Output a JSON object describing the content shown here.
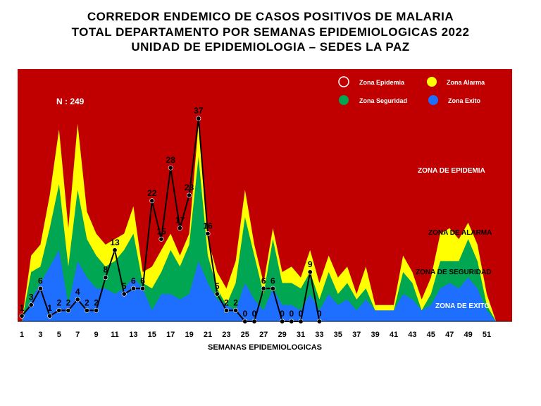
{
  "titles": {
    "line1": "CORREDOR ENDEMICO DE CASOS POSITIVOS DE MALARIA",
    "line2": "TOTAL DEPARTAMENTO POR SEMANAS EPIDEMIOLOGICAS 2022",
    "line3": "UNIDAD DE EPIDEMIOLOGIA – SEDES LA PAZ"
  },
  "annotation_n": "N : 249",
  "legend": [
    {
      "label": "Zona Epidemia",
      "color": "#c00000"
    },
    {
      "label": "Zona Alarma",
      "color": "#ffff00"
    },
    {
      "label": "Zona Seguridad",
      "color": "#00a651"
    },
    {
      "label": "Zona Exito",
      "color": "#0070ff"
    }
  ],
  "zone_labels": {
    "epidemia": "ZONA DE EPIDEMIA",
    "alarma": "ZONA DE ALARMA",
    "seguridad": "ZONA DE  SEGURIDAD",
    "exito": "ZONA DE  EXITO"
  },
  "colors": {
    "epidemia": "#c00000",
    "alarma": "#ffff00",
    "seguridad": "#00a651",
    "exito": "#1e6fff",
    "line": "#000000"
  },
  "chart_data": {
    "type": "area",
    "xlabel": "SEMANAS EPIDEMIOLOGICAS",
    "x_ticks": [
      1,
      3,
      5,
      7,
      9,
      11,
      13,
      15,
      17,
      19,
      21,
      23,
      25,
      27,
      29,
      31,
      33,
      35,
      37,
      39,
      41,
      43,
      45,
      47,
      49,
      51
    ],
    "x": [
      1,
      2,
      3,
      4,
      5,
      6,
      7,
      8,
      9,
      10,
      11,
      12,
      13,
      14,
      15,
      16,
      17,
      18,
      19,
      20,
      21,
      22,
      23,
      24,
      25,
      26,
      27,
      28,
      29,
      30,
      31,
      32,
      33,
      34,
      35,
      36,
      37,
      38,
      39,
      40,
      41,
      42,
      43,
      44,
      45,
      46,
      47,
      48,
      49,
      50,
      51,
      52
    ],
    "ylim": [
      0,
      46
    ],
    "series": [
      {
        "name": "Zona Exito",
        "values": [
          0,
          4,
          7,
          10,
          13,
          3,
          11,
          8,
          6,
          6,
          5,
          6,
          8,
          6,
          2,
          5,
          5,
          4,
          5,
          11,
          7,
          4,
          3,
          2,
          7,
          4,
          2,
          6,
          3,
          3,
          2,
          5,
          2,
          5,
          3,
          4,
          2,
          4,
          2,
          2,
          2,
          5,
          4,
          2,
          3,
          6,
          7,
          6,
          8,
          6,
          2,
          0
        ]
      },
      {
        "name": "Zona Seguridad",
        "values": [
          0,
          9,
          10,
          17,
          25,
          10,
          24,
          15,
          12,
          10,
          11,
          13,
          16,
          7,
          6,
          9,
          13,
          10,
          14,
          30,
          12,
          6,
          3,
          7,
          19,
          12,
          5,
          15,
          7,
          7,
          6,
          9,
          4,
          9,
          5,
          7,
          4,
          6,
          2,
          2,
          2,
          9,
          7,
          2,
          5,
          11,
          11,
          11,
          15,
          11,
          3,
          0
        ]
      },
      {
        "name": "Zona Alarma",
        "values": [
          0,
          12,
          14,
          23,
          35,
          17,
          36,
          20,
          16,
          14,
          15,
          16,
          21,
          9,
          10,
          13,
          16,
          12,
          16,
          36,
          15,
          9,
          6,
          11,
          24,
          14,
          7,
          17,
          9,
          10,
          8,
          13,
          7,
          12,
          8,
          10,
          5,
          10,
          3,
          3,
          3,
          12,
          9,
          4,
          8,
          16,
          17,
          15,
          18,
          14,
          5,
          0
        ]
      },
      {
        "name": "Zona Epidemia",
        "values": [
          46,
          46,
          46,
          46,
          46,
          46,
          46,
          46,
          46,
          46,
          46,
          46,
          46,
          46,
          46,
          46,
          46,
          46,
          46,
          46,
          46,
          46,
          46,
          46,
          46,
          46,
          46,
          46,
          46,
          46,
          46,
          46,
          46,
          46,
          46,
          46,
          46,
          46,
          46,
          46,
          46,
          46,
          46,
          46,
          46,
          46,
          46,
          46,
          46,
          46,
          46,
          46
        ]
      }
    ],
    "observed": {
      "x": [
        1,
        2,
        3,
        4,
        5,
        6,
        7,
        8,
        9,
        10,
        11,
        12,
        13,
        14,
        15,
        16,
        17,
        18,
        19,
        20,
        21,
        22,
        23,
        24,
        25,
        26,
        27,
        28,
        29,
        30,
        31,
        32,
        33
      ],
      "values": [
        1,
        3,
        6,
        1,
        2,
        2,
        4,
        2,
        2,
        8,
        13,
        5,
        6,
        6,
        22,
        15,
        28,
        17,
        23,
        37,
        16,
        5,
        2,
        2,
        0,
        0,
        6,
        6,
        0,
        0,
        0,
        9,
        0
      ],
      "labels": [
        "1",
        "3",
        "6",
        "1",
        "2",
        "2",
        "4",
        "2",
        "2",
        "8",
        "13",
        "5",
        "6",
        "6",
        "22",
        "15",
        "28",
        "17",
        "23",
        "37",
        "16",
        "5",
        "2",
        "2",
        "0",
        "0",
        "6",
        "6",
        "0",
        "0",
        "0",
        "9",
        "0"
      ]
    }
  }
}
